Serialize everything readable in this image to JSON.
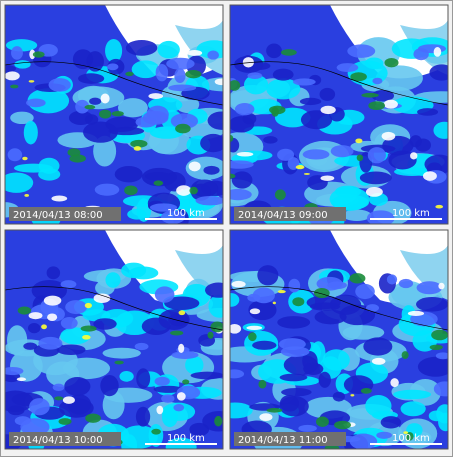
{
  "panels": [
    {
      "timestamp": "2014/04/13 08:00",
      "scale": "100 km"
    },
    {
      "timestamp": "2014/04/13 09:00",
      "scale": "100 km"
    },
    {
      "timestamp": "2014/04/13 10:00",
      "scale": "100 km"
    },
    {
      "timestamp": "2014/04/13 11:00",
      "scale": "100 km"
    }
  ]
}
